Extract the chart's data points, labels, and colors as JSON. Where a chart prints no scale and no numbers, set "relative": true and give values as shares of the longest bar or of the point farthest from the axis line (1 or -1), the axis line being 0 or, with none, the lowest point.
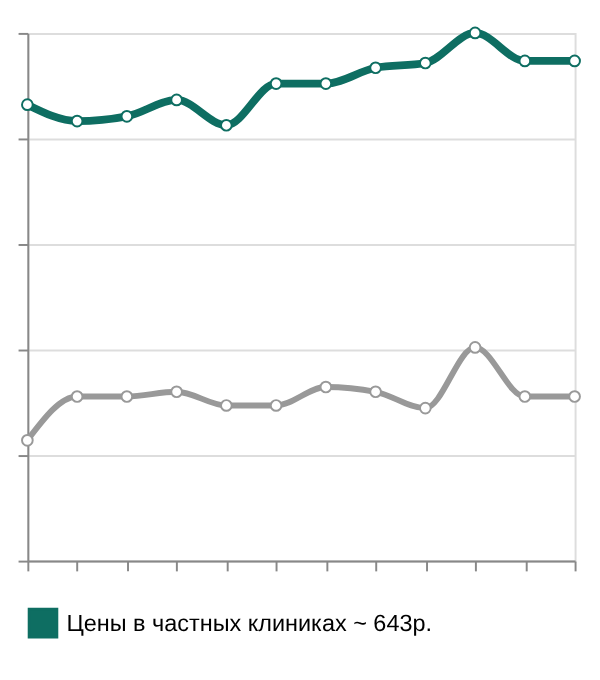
{
  "chart_data": {
    "type": "line",
    "relative": true,
    "categories": [
      null,
      null,
      null,
      null,
      null,
      null,
      null,
      null,
      null,
      null,
      null,
      null
    ],
    "series": [
      {
        "name": "Цены в частных клиниках ~ 643р.",
        "color": "#0e6e62",
        "values": [
          0.864,
          0.833,
          0.842,
          0.873,
          0.825,
          0.904,
          0.904,
          0.934,
          0.943,
          1.0,
          0.947,
          0.947
        ]
      },
      {
        "color": "#999999",
        "values": [
          0.228,
          0.311,
          0.311,
          0.32,
          0.294,
          0.294,
          0.329,
          0.32,
          0.289,
          0.404,
          0.311,
          0.311
        ]
      }
    ],
    "marker": "circle",
    "line_style": "solid",
    "grid": "y",
    "legend": "bottom"
  }
}
